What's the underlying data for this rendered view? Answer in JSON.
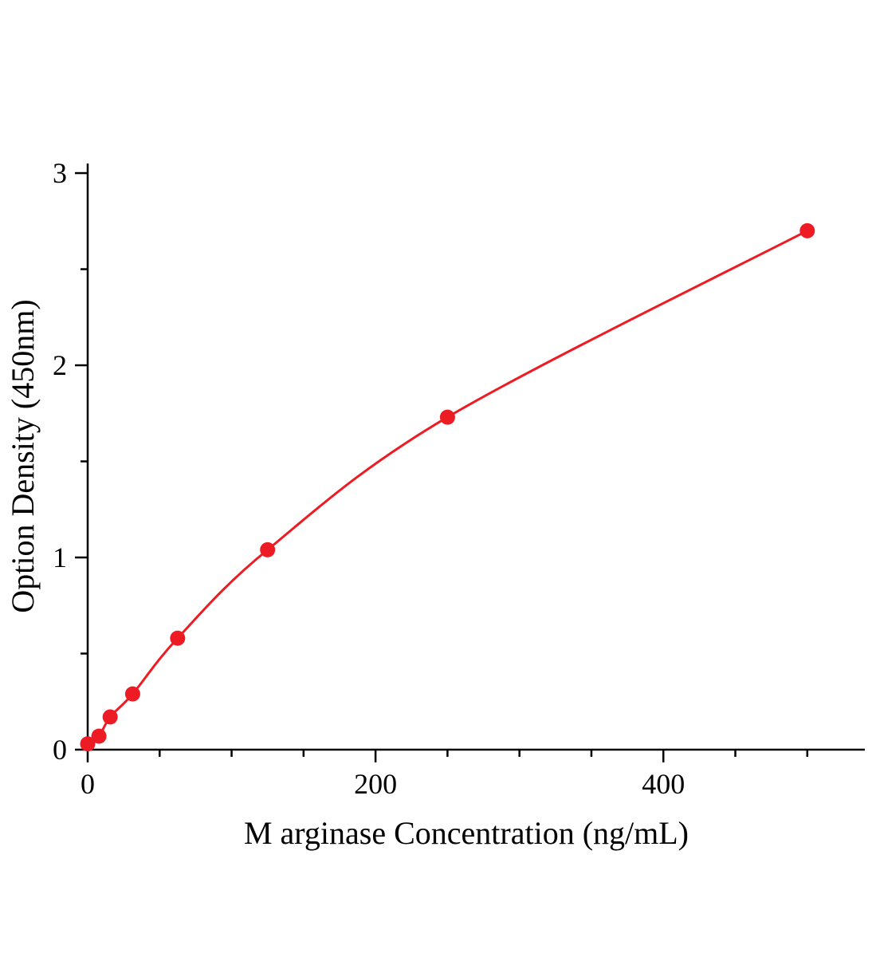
{
  "chart_data": {
    "type": "line",
    "title": "",
    "xlabel": "M arginase Concentration (ng/mL)",
    "ylabel": "Option Density (450nm)",
    "x": [
      0,
      7.8,
      15.6,
      31.25,
      62.5,
      125,
      250,
      500
    ],
    "y": [
      0.03,
      0.07,
      0.17,
      0.29,
      0.58,
      1.04,
      1.73,
      2.7
    ],
    "xlim": [
      0,
      540
    ],
    "ylim": [
      0,
      3.05
    ],
    "x_major_ticks": [
      0,
      200,
      400
    ],
    "x_tick_labels": [
      "0",
      "200",
      "400"
    ],
    "x_minor_step": 50,
    "y_major_ticks": [
      0,
      1,
      2,
      3
    ],
    "y_tick_labels": [
      "0",
      "1",
      "2",
      "3"
    ],
    "y_minor_step": 0.5,
    "line_color": "#ed1c24",
    "marker_color": "#ed1c24",
    "axis_color": "#000000",
    "grid": false,
    "legend": "none"
  }
}
